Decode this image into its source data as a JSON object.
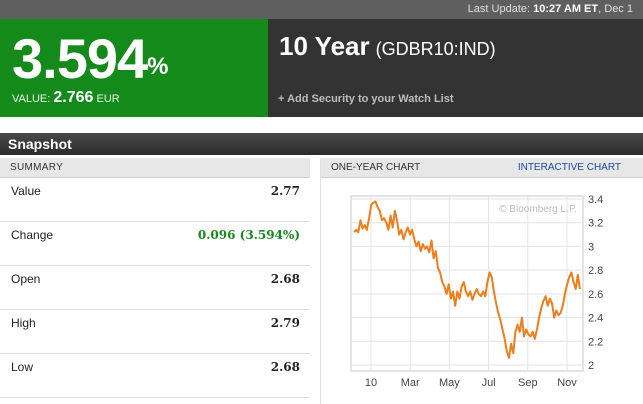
{
  "topbar": {
    "last_update_label": "Last Update:",
    "time": "10:27 AM ET",
    "date": "Dec 1"
  },
  "quote": {
    "pct_value": "3.594",
    "pct_symbol": "%",
    "value_label": "VALUE:",
    "value": "2.766",
    "currency": "EUR",
    "title": "10 Year",
    "ticker": "(GDBR10:IND)",
    "watch_link": "+ Add Security to your Watch List",
    "colors": {
      "green_panel": "#148a1a",
      "dark_panel": "#333333"
    }
  },
  "snapshot": {
    "title": "Snapshot"
  },
  "summary": {
    "header": "SUMMARY",
    "rows": [
      {
        "label": "Value",
        "value": "2.77"
      },
      {
        "label": "Change",
        "value": "0.096 (3.594%)"
      },
      {
        "label": "Open",
        "value": "2.68"
      },
      {
        "label": "High",
        "value": "2.79"
      },
      {
        "label": "Low",
        "value": "2.68"
      }
    ]
  },
  "chart_panel": {
    "header": "ONE-YEAR CHART",
    "link": "INTERACTIVE CHART",
    "watermark": "© Bloomberg L.P."
  },
  "chart_data": {
    "type": "line",
    "color": "#f07d1a",
    "x_ticks": [
      "10",
      "Mar",
      "May",
      "Jul",
      "Sep",
      "Nov"
    ],
    "y_ticks": [
      "3.4",
      "3.2",
      "3",
      "2.8",
      "2.6",
      "2.4",
      "2.2",
      "2"
    ],
    "ylim": [
      2.0,
      3.4
    ],
    "grid": true,
    "y_axis_position": "right",
    "points": [
      [
        0,
        3.12
      ],
      [
        2,
        3.14
      ],
      [
        4,
        3.12
      ],
      [
        6,
        3.22
      ],
      [
        8,
        3.15
      ],
      [
        10,
        3.18
      ],
      [
        12,
        3.14
      ],
      [
        14,
        3.24
      ],
      [
        16,
        3.35
      ],
      [
        18,
        3.37
      ],
      [
        20,
        3.38
      ],
      [
        22,
        3.33
      ],
      [
        24,
        3.3
      ],
      [
        26,
        3.22
      ],
      [
        28,
        3.24
      ],
      [
        30,
        3.2
      ],
      [
        32,
        3.14
      ],
      [
        34,
        3.26
      ],
      [
        36,
        3.16
      ],
      [
        38,
        3.3
      ],
      [
        40,
        3.22
      ],
      [
        42,
        3.1
      ],
      [
        44,
        3.14
      ],
      [
        46,
        3.06
      ],
      [
        48,
        3.12
      ],
      [
        50,
        3.16
      ],
      [
        52,
        3.1
      ],
      [
        54,
        3.14
      ],
      [
        56,
        3.06
      ],
      [
        58,
        3.0
      ],
      [
        60,
        3.04
      ],
      [
        62,
        2.96
      ],
      [
        64,
        3.02
      ],
      [
        66,
        2.98
      ],
      [
        68,
        3.0
      ],
      [
        70,
        2.95
      ],
      [
        72,
        3.05
      ],
      [
        74,
        2.9
      ],
      [
        76,
        2.96
      ],
      [
        78,
        2.82
      ],
      [
        80,
        2.78
      ],
      [
        82,
        2.7
      ],
      [
        84,
        2.66
      ],
      [
        86,
        2.6
      ],
      [
        88,
        2.68
      ],
      [
        90,
        2.56
      ],
      [
        92,
        2.62
      ],
      [
        94,
        2.5
      ],
      [
        96,
        2.62
      ],
      [
        98,
        2.56
      ],
      [
        100,
        2.66
      ],
      [
        102,
        2.7
      ],
      [
        104,
        2.62
      ],
      [
        106,
        2.58
      ],
      [
        108,
        2.62
      ],
      [
        110,
        2.55
      ],
      [
        112,
        2.6
      ],
      [
        114,
        2.64
      ],
      [
        116,
        2.6
      ],
      [
        118,
        2.58
      ],
      [
        120,
        2.62
      ],
      [
        122,
        2.58
      ],
      [
        124,
        2.7
      ],
      [
        126,
        2.78
      ],
      [
        128,
        2.74
      ],
      [
        130,
        2.62
      ],
      [
        132,
        2.52
      ],
      [
        134,
        2.44
      ],
      [
        136,
        2.38
      ],
      [
        138,
        2.3
      ],
      [
        140,
        2.22
      ],
      [
        142,
        2.12
      ],
      [
        144,
        2.06
      ],
      [
        146,
        2.18
      ],
      [
        148,
        2.1
      ],
      [
        150,
        2.28
      ],
      [
        152,
        2.34
      ],
      [
        154,
        2.28
      ],
      [
        156,
        2.4
      ],
      [
        158,
        2.24
      ],
      [
        160,
        2.3
      ],
      [
        162,
        2.26
      ],
      [
        164,
        2.24
      ],
      [
        166,
        2.28
      ],
      [
        168,
        2.22
      ],
      [
        170,
        2.3
      ],
      [
        172,
        2.4
      ],
      [
        174,
        2.48
      ],
      [
        176,
        2.54
      ],
      [
        178,
        2.58
      ],
      [
        180,
        2.5
      ],
      [
        182,
        2.56
      ],
      [
        184,
        2.52
      ],
      [
        186,
        2.4
      ],
      [
        188,
        2.46
      ],
      [
        190,
        2.42
      ],
      [
        192,
        2.44
      ],
      [
        194,
        2.5
      ],
      [
        196,
        2.6
      ],
      [
        198,
        2.68
      ],
      [
        200,
        2.74
      ],
      [
        202,
        2.78
      ],
      [
        204,
        2.7
      ],
      [
        206,
        2.64
      ],
      [
        208,
        2.76
      ],
      [
        210,
        2.64
      ]
    ]
  }
}
